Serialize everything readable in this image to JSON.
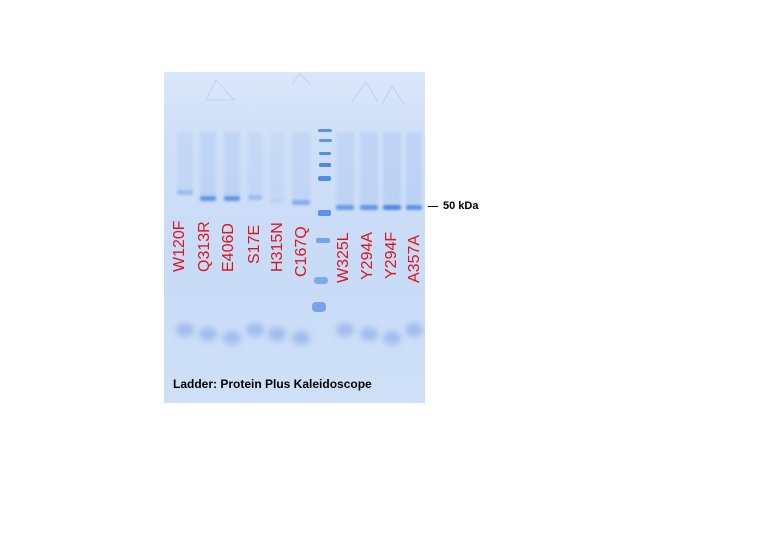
{
  "lanes": [
    {
      "label": "W120F",
      "band_intensity": 0.35
    },
    {
      "label": "Q313R",
      "band_intensity": 0.75
    },
    {
      "label": "E406D",
      "band_intensity": 0.75
    },
    {
      "label": "S17E",
      "band_intensity": 0.35
    },
    {
      "label": "H315N",
      "band_intensity": 0.1
    },
    {
      "label": "C167Q",
      "band_intensity": 0.5
    },
    {
      "label": "W325L",
      "band_intensity": 0.7
    },
    {
      "label": "Y294A",
      "band_intensity": 0.75
    },
    {
      "label": "Y294F",
      "band_intensity": 0.9
    },
    {
      "label": "A357A",
      "band_intensity": 0.8
    }
  ],
  "marker": {
    "label": "50 kDa"
  },
  "ladder": {
    "caption": "Ladder: Protein Plus Kaleidoscope"
  },
  "colors": {
    "gel_background": "#cfdff8",
    "band": "#3f7fe0",
    "label_text": "#e0141c"
  }
}
